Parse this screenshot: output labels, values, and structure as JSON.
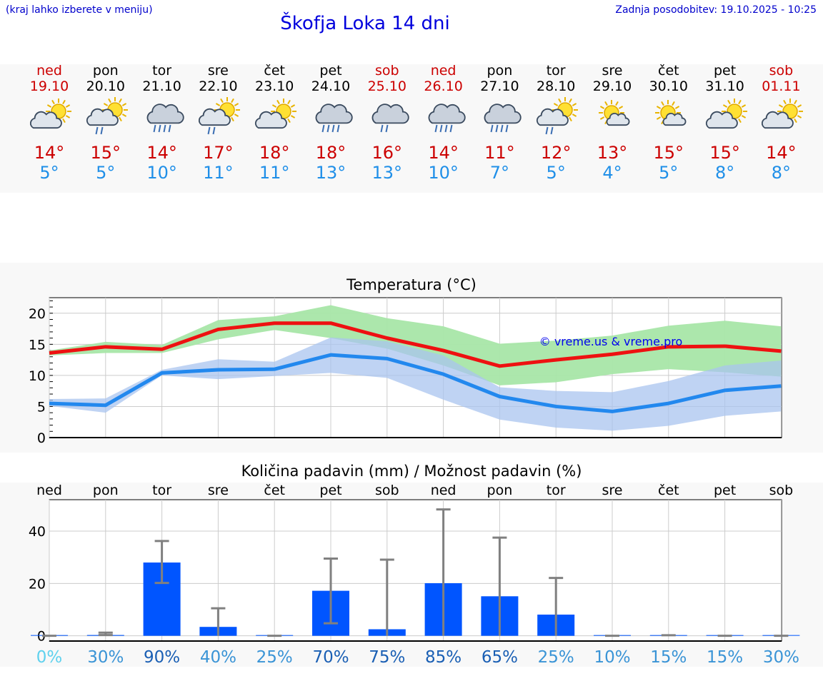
{
  "header": {
    "hint": "(kraj lahko izberete v meniju)",
    "title": "Škofja Loka 14 dni",
    "updated": "Zadnja posodobitev: 19.10.2025 - 10:25"
  },
  "forecast": [
    {
      "day": "ned",
      "date": "19.10",
      "max": "14°",
      "min": "5°",
      "weekend": true,
      "icon": "sun-cloud-icon"
    },
    {
      "day": "pon",
      "date": "20.10",
      "max": "15°",
      "min": "5°",
      "weekend": false,
      "icon": "sun-cloud-rain-icon"
    },
    {
      "day": "tor",
      "date": "21.10",
      "max": "14°",
      "min": "10°",
      "weekend": false,
      "icon": "cloud-heavy-rain-icon"
    },
    {
      "day": "sre",
      "date": "22.10",
      "max": "17°",
      "min": "11°",
      "weekend": false,
      "icon": "sun-cloud-rain-icon"
    },
    {
      "day": "čet",
      "date": "23.10",
      "max": "18°",
      "min": "11°",
      "weekend": false,
      "icon": "sun-cloud-icon"
    },
    {
      "day": "pet",
      "date": "24.10",
      "max": "18°",
      "min": "13°",
      "weekend": false,
      "icon": "cloud-heavy-rain-icon"
    },
    {
      "day": "sob",
      "date": "25.10",
      "max": "16°",
      "min": "13°",
      "weekend": true,
      "icon": "cloud-rain-icon"
    },
    {
      "day": "ned",
      "date": "26.10",
      "max": "14°",
      "min": "10°",
      "weekend": true,
      "icon": "cloud-heavy-rain-icon"
    },
    {
      "day": "pon",
      "date": "27.10",
      "max": "11°",
      "min": "7°",
      "weekend": false,
      "icon": "cloud-heavy-rain-icon"
    },
    {
      "day": "tor",
      "date": "28.10",
      "max": "12°",
      "min": "5°",
      "weekend": false,
      "icon": "sun-cloud-rain-icon"
    },
    {
      "day": "sre",
      "date": "29.10",
      "max": "13°",
      "min": "4°",
      "weekend": false,
      "icon": "sun-small-cloud-icon"
    },
    {
      "day": "čet",
      "date": "30.10",
      "max": "15°",
      "min": "5°",
      "weekend": false,
      "icon": "sun-small-cloud-icon"
    },
    {
      "day": "pet",
      "date": "31.10",
      "max": "15°",
      "min": "8°",
      "weekend": false,
      "icon": "sun-cloud-icon"
    },
    {
      "day": "sob",
      "date": "01.11",
      "max": "14°",
      "min": "8°",
      "weekend": true,
      "icon": "sun-cloud-icon"
    }
  ],
  "colors": {
    "max_line": "#ee1111",
    "min_line": "#2288ee",
    "max_band": "#a8e6a8",
    "min_band": "#a9c4ef",
    "overlap_band": "#6fbfa8",
    "bar": "#0055ff",
    "whisker": "#808080",
    "max_text": "#cc0000",
    "min_text": "#1f8fe8"
  },
  "chart_data": [
    {
      "type": "line",
      "title": "Temperatura (°C)",
      "watermark": "© vreme.us & vreme.pro",
      "ylim": [
        0,
        22.5
      ],
      "yticks": [
        0,
        5,
        10,
        15,
        20
      ],
      "x": [
        0,
        1,
        2,
        3,
        4,
        5,
        6,
        7,
        8,
        9,
        10,
        11,
        12,
        13
      ],
      "grid": true,
      "series": [
        {
          "role": "max",
          "values": [
            13.6,
            14.6,
            14.2,
            17.4,
            18.4,
            18.4,
            16.0,
            14.0,
            11.5,
            12.5,
            13.4,
            14.6,
            14.7,
            13.9
          ]
        },
        {
          "role": "min",
          "values": [
            5.5,
            5.2,
            10.4,
            10.9,
            11.0,
            13.3,
            12.7,
            10.2,
            6.6,
            5.0,
            4.2,
            5.5,
            7.6,
            8.3
          ]
        }
      ],
      "bands": [
        {
          "role": "max",
          "low": [
            13.2,
            13.6,
            13.6,
            15.8,
            17.3,
            16.0,
            14.3,
            11.6,
            8.4,
            8.9,
            10.2,
            11.0,
            10.5,
            9.8
          ],
          "high": [
            14.0,
            15.4,
            14.9,
            18.9,
            19.5,
            21.3,
            19.2,
            17.9,
            15.1,
            15.6,
            16.4,
            18.0,
            18.8,
            17.9
          ]
        },
        {
          "role": "min",
          "low": [
            5.1,
            4.0,
            10.0,
            9.4,
            9.9,
            10.4,
            9.6,
            6.1,
            2.9,
            1.6,
            1.1,
            1.9,
            3.5,
            4.2
          ],
          "high": [
            6.2,
            6.3,
            10.9,
            12.6,
            12.2,
            16.1,
            15.5,
            13.2,
            8.1,
            7.5,
            7.3,
            9.1,
            11.6,
            12.4
          ]
        }
      ]
    },
    {
      "type": "bar",
      "title": "Količina padavin (mm) / Možnost padavin (%)",
      "categories": [
        "ned",
        "pon",
        "tor",
        "sre",
        "čet",
        "pet",
        "sob",
        "ned",
        "pon",
        "tor",
        "sre",
        "čet",
        "pet",
        "sob"
      ],
      "values": [
        0,
        0.3,
        28,
        3.4,
        0,
        17.2,
        2.5,
        20.1,
        15.1,
        8.1,
        0,
        0,
        0,
        0
      ],
      "error_low": [
        0,
        0.3,
        20.2,
        0,
        0,
        4.8,
        0,
        0,
        0,
        0,
        0,
        0,
        0,
        0
      ],
      "error_high": [
        0,
        1.2,
        36.2,
        10.5,
        0,
        29.5,
        29.1,
        48.3,
        37.5,
        22.1,
        0,
        0.2,
        0,
        0
      ],
      "probability": [
        "0%",
        "30%",
        "90%",
        "40%",
        "25%",
        "70%",
        "75%",
        "85%",
        "65%",
        "25%",
        "10%",
        "15%",
        "15%",
        "30%"
      ],
      "probability_colors": [
        "#5ed1ee",
        "#3a94d6",
        "#1a5fb4",
        "#3a94d6",
        "#3a94d6",
        "#1a5fb4",
        "#1a5fb4",
        "#1a5fb4",
        "#1a5fb4",
        "#3a94d6",
        "#3a94d6",
        "#3a94d6",
        "#3a94d6",
        "#3a94d6"
      ],
      "ylim": [
        -2,
        52
      ],
      "yticks": [
        0,
        20,
        40
      ],
      "grid": true
    }
  ]
}
